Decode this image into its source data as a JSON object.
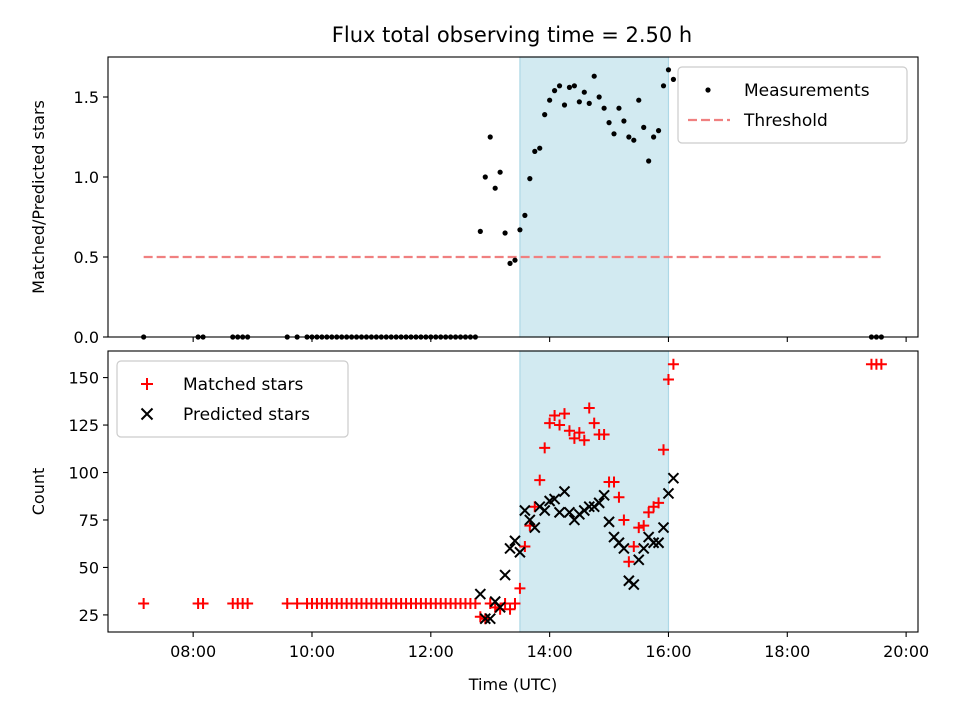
{
  "figure": {
    "title": "Flux total observing time = 2.50 h"
  },
  "chart_data": [
    {
      "type": "scatter",
      "panel": "top",
      "xlabel": "",
      "ylabel": "Matched/Predicted stars",
      "xlim": [
        "06:34",
        "20:12"
      ],
      "ylim": [
        0,
        1.75
      ],
      "yticks": [
        0.0,
        0.5,
        1.0,
        1.5
      ],
      "xticks": [
        "08:00",
        "10:00",
        "12:00",
        "14:00",
        "16:00",
        "18:00",
        "20:00"
      ],
      "show_xtick_labels": false,
      "grid": false,
      "legend_position": "top-right",
      "shaded_interval": {
        "start": "13:30",
        "end": "16:00",
        "color": "#add8e6"
      },
      "threshold": {
        "name": "Threshold",
        "value": 0.5,
        "x_start": "07:10",
        "x_end": "19:35",
        "color": "#f08080",
        "style": "dashed"
      },
      "series": [
        {
          "name": "Measurements",
          "marker": "dot",
          "color": "#000000",
          "points": [
            [
              "07:10",
              0.0
            ],
            [
              "08:05",
              0.0
            ],
            [
              "08:10",
              0.0
            ],
            [
              "08:40",
              0.0
            ],
            [
              "08:45",
              0.0
            ],
            [
              "08:50",
              0.0
            ],
            [
              "08:55",
              0.0
            ],
            [
              "09:35",
              0.0
            ],
            [
              "09:45",
              0.0
            ],
            [
              "09:55",
              0.0
            ],
            [
              "10:00",
              0.0
            ],
            [
              "10:05",
              0.0
            ],
            [
              "10:10",
              0.0
            ],
            [
              "10:15",
              0.0
            ],
            [
              "10:20",
              0.0
            ],
            [
              "10:25",
              0.0
            ],
            [
              "10:30",
              0.0
            ],
            [
              "10:35",
              0.0
            ],
            [
              "10:40",
              0.0
            ],
            [
              "10:45",
              0.0
            ],
            [
              "10:50",
              0.0
            ],
            [
              "10:55",
              0.0
            ],
            [
              "11:00",
              0.0
            ],
            [
              "11:05",
              0.0
            ],
            [
              "11:10",
              0.0
            ],
            [
              "11:15",
              0.0
            ],
            [
              "11:20",
              0.0
            ],
            [
              "11:25",
              0.0
            ],
            [
              "11:30",
              0.0
            ],
            [
              "11:35",
              0.0
            ],
            [
              "11:40",
              0.0
            ],
            [
              "11:45",
              0.0
            ],
            [
              "11:50",
              0.0
            ],
            [
              "11:55",
              0.0
            ],
            [
              "12:00",
              0.0
            ],
            [
              "12:05",
              0.0
            ],
            [
              "12:10",
              0.0
            ],
            [
              "12:15",
              0.0
            ],
            [
              "12:20",
              0.0
            ],
            [
              "12:25",
              0.0
            ],
            [
              "12:30",
              0.0
            ],
            [
              "12:35",
              0.0
            ],
            [
              "12:40",
              0.0
            ],
            [
              "12:45",
              0.0
            ],
            [
              "12:50",
              0.66
            ],
            [
              "12:55",
              1.0
            ],
            [
              "13:00",
              1.25
            ],
            [
              "13:05",
              0.93
            ],
            [
              "13:10",
              1.03
            ],
            [
              "13:15",
              0.65
            ],
            [
              "13:20",
              0.46
            ],
            [
              "13:25",
              0.48
            ],
            [
              "13:30",
              0.67
            ],
            [
              "13:35",
              0.76
            ],
            [
              "13:40",
              0.99
            ],
            [
              "13:45",
              1.16
            ],
            [
              "13:50",
              1.18
            ],
            [
              "13:55",
              1.39
            ],
            [
              "14:00",
              1.48
            ],
            [
              "14:05",
              1.54
            ],
            [
              "14:10",
              1.57
            ],
            [
              "14:15",
              1.45
            ],
            [
              "14:20",
              1.56
            ],
            [
              "14:25",
              1.57
            ],
            [
              "14:30",
              1.47
            ],
            [
              "14:35",
              1.53
            ],
            [
              "14:40",
              1.46
            ],
            [
              "14:45",
              1.63
            ],
            [
              "14:50",
              1.5
            ],
            [
              "14:55",
              1.43
            ],
            [
              "15:00",
              1.34
            ],
            [
              "15:05",
              1.27
            ],
            [
              "15:10",
              1.43
            ],
            [
              "15:15",
              1.35
            ],
            [
              "15:20",
              1.25
            ],
            [
              "15:25",
              1.23
            ],
            [
              "15:30",
              1.48
            ],
            [
              "15:35",
              1.31
            ],
            [
              "15:40",
              1.1
            ],
            [
              "15:45",
              1.25
            ],
            [
              "15:50",
              1.29
            ],
            [
              "15:55",
              1.57
            ],
            [
              "16:00",
              1.67
            ],
            [
              "16:05",
              1.61
            ],
            [
              "19:25",
              0.0
            ],
            [
              "19:30",
              0.0
            ],
            [
              "19:35",
              0.0
            ]
          ]
        }
      ]
    },
    {
      "type": "scatter",
      "panel": "bottom",
      "xlabel": "Time (UTC)",
      "ylabel": "Count",
      "xlim": [
        "06:34",
        "20:12"
      ],
      "ylim": [
        16,
        164
      ],
      "yticks": [
        25,
        50,
        75,
        100,
        125,
        150
      ],
      "xticks": [
        "08:00",
        "10:00",
        "12:00",
        "14:00",
        "16:00",
        "18:00",
        "20:00"
      ],
      "show_xtick_labels": true,
      "grid": false,
      "legend_position": "top-left",
      "shaded_interval": {
        "start": "13:30",
        "end": "16:00",
        "color": "#add8e6"
      },
      "series": [
        {
          "name": "Matched stars",
          "marker": "plus",
          "color": "#ff0000",
          "points": [
            [
              "07:10",
              31
            ],
            [
              "08:05",
              31
            ],
            [
              "08:10",
              31
            ],
            [
              "08:40",
              31
            ],
            [
              "08:45",
              31
            ],
            [
              "08:50",
              31
            ],
            [
              "08:55",
              31
            ],
            [
              "09:35",
              31
            ],
            [
              "09:45",
              31
            ],
            [
              "09:55",
              31
            ],
            [
              "10:00",
              31
            ],
            [
              "10:05",
              31
            ],
            [
              "10:10",
              31
            ],
            [
              "10:15",
              31
            ],
            [
              "10:20",
              31
            ],
            [
              "10:25",
              31
            ],
            [
              "10:30",
              31
            ],
            [
              "10:35",
              31
            ],
            [
              "10:40",
              31
            ],
            [
              "10:45",
              31
            ],
            [
              "10:50",
              31
            ],
            [
              "10:55",
              31
            ],
            [
              "11:00",
              31
            ],
            [
              "11:05",
              31
            ],
            [
              "11:10",
              31
            ],
            [
              "11:15",
              31
            ],
            [
              "11:20",
              31
            ],
            [
              "11:25",
              31
            ],
            [
              "11:30",
              31
            ],
            [
              "11:35",
              31
            ],
            [
              "11:40",
              31
            ],
            [
              "11:45",
              31
            ],
            [
              "11:50",
              31
            ],
            [
              "11:55",
              31
            ],
            [
              "12:00",
              31
            ],
            [
              "12:05",
              31
            ],
            [
              "12:10",
              31
            ],
            [
              "12:15",
              31
            ],
            [
              "12:20",
              31
            ],
            [
              "12:25",
              31
            ],
            [
              "12:30",
              31
            ],
            [
              "12:35",
              31
            ],
            [
              "12:40",
              31
            ],
            [
              "12:45",
              31
            ],
            [
              "12:50",
              24
            ],
            [
              "12:55",
              23
            ],
            [
              "13:00",
              31
            ],
            [
              "13:05",
              29
            ],
            [
              "13:10",
              28
            ],
            [
              "13:15",
              31
            ],
            [
              "13:20",
              28
            ],
            [
              "13:25",
              31
            ],
            [
              "13:30",
              39
            ],
            [
              "13:35",
              61
            ],
            [
              "13:40",
              72
            ],
            [
              "13:45",
              82
            ],
            [
              "13:50",
              96
            ],
            [
              "13:55",
              113
            ],
            [
              "14:00",
              126
            ],
            [
              "14:05",
              130
            ],
            [
              "14:10",
              125
            ],
            [
              "14:15",
              131
            ],
            [
              "14:20",
              122
            ],
            [
              "14:25",
              118
            ],
            [
              "14:30",
              121
            ],
            [
              "14:35",
              117
            ],
            [
              "14:40",
              134
            ],
            [
              "14:45",
              126
            ],
            [
              "14:50",
              120
            ],
            [
              "14:55",
              120
            ],
            [
              "15:00",
              95
            ],
            [
              "15:05",
              95
            ],
            [
              "15:10",
              87
            ],
            [
              "15:15",
              75
            ],
            [
              "15:20",
              53
            ],
            [
              "15:25",
              61
            ],
            [
              "15:30",
              71
            ],
            [
              "15:35",
              72
            ],
            [
              "15:40",
              79
            ],
            [
              "15:45",
              82
            ],
            [
              "15:50",
              84
            ],
            [
              "15:55",
              112
            ],
            [
              "16:00",
              149
            ],
            [
              "16:05",
              157
            ],
            [
              "19:25",
              157
            ],
            [
              "19:30",
              157
            ],
            [
              "19:35",
              157
            ]
          ]
        },
        {
          "name": "Predicted stars",
          "marker": "x",
          "color": "#000000",
          "points": [
            [
              "12:50",
              36
            ],
            [
              "12:55",
              23
            ],
            [
              "13:00",
              23
            ],
            [
              "13:05",
              32
            ],
            [
              "13:10",
              29
            ],
            [
              "13:15",
              46
            ],
            [
              "13:20",
              60
            ],
            [
              "13:25",
              64
            ],
            [
              "13:30",
              58
            ],
            [
              "13:35",
              80
            ],
            [
              "13:40",
              75
            ],
            [
              "13:45",
              71
            ],
            [
              "13:50",
              82
            ],
            [
              "13:55",
              80
            ],
            [
              "14:00",
              85
            ],
            [
              "14:05",
              86
            ],
            [
              "14:10",
              79
            ],
            [
              "14:15",
              90
            ],
            [
              "14:20",
              79
            ],
            [
              "14:25",
              75
            ],
            [
              "14:30",
              78
            ],
            [
              "14:35",
              80
            ],
            [
              "14:40",
              82
            ],
            [
              "14:45",
              82
            ],
            [
              "14:50",
              84
            ],
            [
              "14:55",
              88
            ],
            [
              "15:00",
              74
            ],
            [
              "15:05",
              66
            ],
            [
              "15:10",
              63
            ],
            [
              "15:15",
              60
            ],
            [
              "15:20",
              43
            ],
            [
              "15:25",
              41
            ],
            [
              "15:30",
              54
            ],
            [
              "15:35",
              60
            ],
            [
              "15:40",
              66
            ],
            [
              "15:45",
              63
            ],
            [
              "15:50",
              63
            ],
            [
              "15:55",
              71
            ],
            [
              "16:00",
              89
            ],
            [
              "16:05",
              97
            ]
          ]
        }
      ]
    }
  ]
}
